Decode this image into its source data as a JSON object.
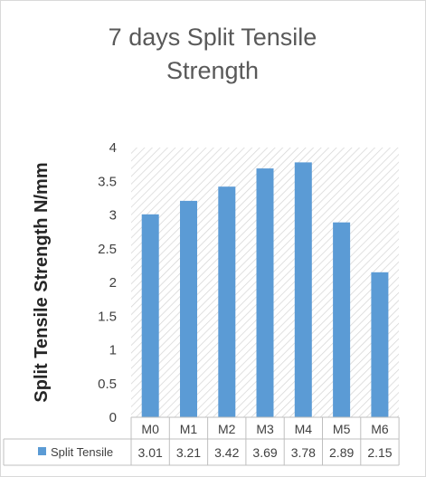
{
  "chart_data": {
    "type": "bar",
    "title_lines": [
      "7 days Split Tensile",
      "Strength"
    ],
    "ylabel": "Split Tensile  Strength N/mm",
    "xlabel": "",
    "categories": [
      "M0",
      "M1",
      "M2",
      "M3",
      "M4",
      "M5",
      "M6"
    ],
    "series": [
      {
        "name": "Split Tensile",
        "values": [
          3.01,
          3.21,
          3.42,
          3.69,
          3.78,
          2.89,
          2.15
        ]
      }
    ],
    "ylim": [
      0,
      4
    ],
    "yticks": [
      "0",
      "0.5",
      "1",
      "1.5",
      "2",
      "2.5",
      "3",
      "3.5",
      "4"
    ],
    "data_table": true,
    "plot_background": "hatched",
    "colors": {
      "bar": "#5b9bd5",
      "hatch": "#d4d4d4",
      "grid": "#bfbfbf"
    }
  }
}
